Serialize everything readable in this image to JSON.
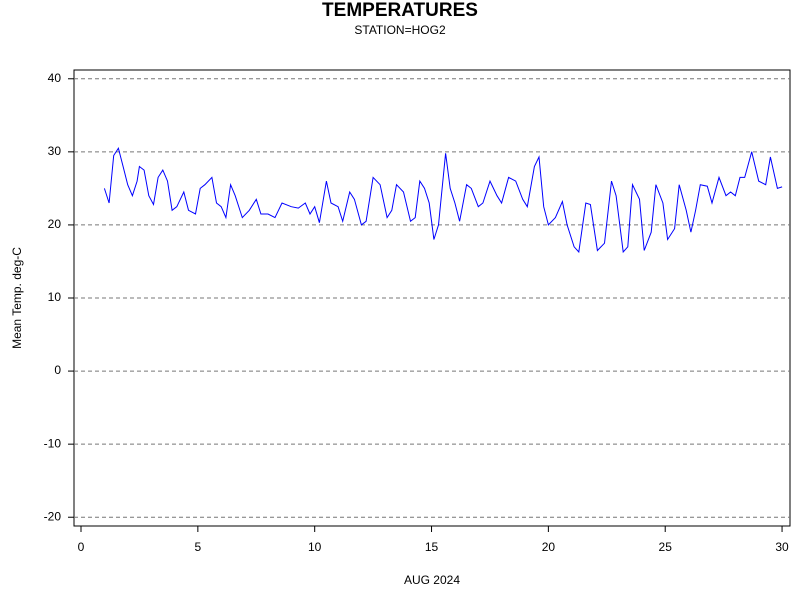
{
  "chart_data": {
    "type": "line",
    "title": "TEMPERATURES",
    "subtitle": "STATION=HOG2",
    "x_label": "AUG 2024",
    "y_label": "Mean Temp. deg-C",
    "xlim": [
      -0.3,
      30.34
    ],
    "ylim": [
      -21.2,
      41.2
    ],
    "xticks": [
      0,
      5,
      10,
      15,
      20,
      25,
      30
    ],
    "yticks": [
      -20,
      -10,
      0,
      10,
      20,
      30,
      40
    ],
    "grid": true,
    "series": [
      {
        "name": "Mean Temp",
        "color": "#0000ff",
        "x": [
          1.0,
          1.2,
          1.4,
          1.6,
          1.8,
          2.0,
          2.2,
          2.4,
          2.5,
          2.7,
          2.9,
          3.1,
          3.3,
          3.5,
          3.7,
          3.9,
          4.1,
          4.4,
          4.6,
          4.9,
          5.1,
          5.3,
          5.6,
          5.8,
          6.0,
          6.2,
          6.4,
          6.6,
          6.9,
          7.2,
          7.5,
          7.7,
          8.0,
          8.3,
          8.6,
          9.0,
          9.3,
          9.6,
          9.8,
          10.0,
          10.2,
          10.5,
          10.7,
          11.0,
          11.2,
          11.5,
          11.7,
          12.0,
          12.2,
          12.5,
          12.8,
          13.1,
          13.3,
          13.5,
          13.8,
          14.1,
          14.3,
          14.5,
          14.7,
          14.9,
          15.1,
          15.3,
          15.6,
          15.8,
          16.0,
          16.2,
          16.5,
          16.7,
          17.0,
          17.2,
          17.5,
          17.8,
          18.0,
          18.3,
          18.6,
          18.9,
          19.1,
          19.4,
          19.6,
          19.8,
          20.0,
          20.3,
          20.6,
          20.8,
          21.1,
          21.3,
          21.6,
          21.8,
          22.1,
          22.4,
          22.7,
          22.9,
          23.2,
          23.4,
          23.6,
          23.9,
          24.1,
          24.4,
          24.6,
          24.9,
          25.1,
          25.4,
          25.6,
          25.9,
          26.1,
          26.3,
          26.5,
          26.8,
          27.0,
          27.3,
          27.6,
          27.8,
          28.0,
          28.2,
          28.4,
          28.7,
          29.0,
          29.3,
          29.5,
          29.8,
          30.0
        ],
        "values": [
          25,
          23,
          29.5,
          30.5,
          28,
          25.5,
          24,
          26,
          28,
          27.5,
          24,
          22.8,
          26.5,
          27.5,
          26,
          22,
          22.5,
          24.5,
          22,
          21.5,
          25,
          25.5,
          26.5,
          23,
          22.5,
          21,
          25.5,
          24,
          21,
          22,
          23.5,
          21.5,
          21.5,
          21,
          23,
          22.5,
          22.3,
          23,
          21.5,
          22.5,
          20.3,
          26,
          23,
          22.5,
          20.5,
          24.5,
          23.5,
          20,
          20.5,
          26.5,
          25.5,
          21,
          22,
          25.5,
          24.5,
          20.5,
          21,
          26,
          25,
          23,
          18,
          20,
          29.8,
          25,
          23,
          20.5,
          25.5,
          25,
          22.5,
          23,
          26,
          24,
          23,
          26.5,
          26,
          23.5,
          22.5,
          28,
          29.3,
          22.5,
          20,
          21,
          23.2,
          20,
          17,
          16.3,
          23,
          22.8,
          16.5,
          17.5,
          26,
          24,
          16.3,
          17,
          25.5,
          23.5,
          16.5,
          19,
          25.5,
          23,
          18,
          19.5,
          25.5,
          22,
          19,
          22,
          25.5,
          25.3,
          23,
          26.5,
          24,
          24.5,
          24,
          26.5,
          26.5,
          30,
          26,
          25.5,
          29.3,
          25,
          25.2
        ]
      }
    ]
  }
}
